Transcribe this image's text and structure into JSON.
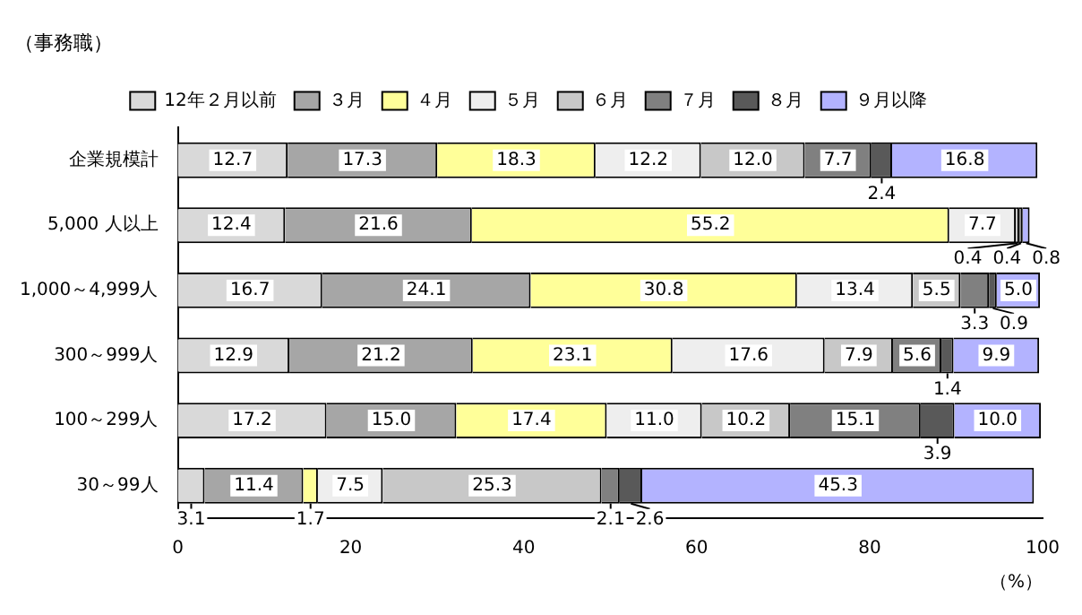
{
  "chart_data": {
    "type": "bar",
    "orientation": "horizontal",
    "stacked": true,
    "title": "（事務職）",
    "xlabel": "（%）",
    "categories": [
      "企業規模計",
      "5,000 人以上",
      "1,000～4,999人",
      "300～999人",
      "100～299人",
      "30～99人"
    ],
    "series": [
      {
        "name": "12年２月以前",
        "color": "#d9d9d9",
        "values": [
          12.7,
          12.4,
          16.7,
          12.9,
          17.2,
          3.1
        ],
        "value_labels": [
          "12.7",
          "12.4",
          "16.7",
          "12.9",
          "17.2",
          "3.1"
        ]
      },
      {
        "name": "３月",
        "color": "#a6a6a6",
        "values": [
          17.3,
          21.6,
          24.1,
          21.2,
          15.0,
          11.4
        ],
        "value_labels": [
          "17.3",
          "21.6",
          "24.1",
          "21.2",
          "15.0",
          "11.4"
        ]
      },
      {
        "name": "４月",
        "color": "#ffff99",
        "values": [
          18.3,
          55.2,
          30.8,
          23.1,
          17.4,
          1.7
        ],
        "value_labels": [
          "18.3",
          "55.2",
          "30.8",
          "23.1",
          "17.4",
          "1.7"
        ]
      },
      {
        "name": "５月",
        "color": "#eeeeee",
        "values": [
          12.2,
          7.7,
          13.4,
          17.6,
          11.0,
          7.5
        ],
        "value_labels": [
          "12.2",
          "7.7",
          "13.4",
          "17.6",
          "11.0",
          "7.5"
        ]
      },
      {
        "name": "６月",
        "color": "#c8c8c8",
        "values": [
          12.0,
          0.4,
          5.5,
          7.9,
          10.2,
          25.3
        ],
        "value_labels": [
          "12.0",
          "0.4",
          "5.5",
          "7.9",
          "10.2",
          "25.3"
        ]
      },
      {
        "name": "７月",
        "color": "#808080",
        "values": [
          7.7,
          0.4,
          3.3,
          5.6,
          15.1,
          2.1
        ],
        "value_labels": [
          "7.7",
          "0.4",
          "3.3",
          "5.6",
          "15.1",
          "2.1"
        ]
      },
      {
        "name": "８月",
        "color": "#595959",
        "values": [
          2.4,
          null,
          0.9,
          1.4,
          3.9,
          2.6
        ],
        "value_labels": [
          "2.4",
          null,
          "0.9",
          "1.4",
          "3.9",
          "2.6"
        ]
      },
      {
        "name": "９月以降",
        "color": "#b3b3ff",
        "values": [
          16.8,
          0.8,
          5.0,
          9.9,
          10.0,
          45.3
        ],
        "value_labels": [
          "16.8",
          "0.8",
          "5.0",
          "9.9",
          "10.0",
          "45.3"
        ]
      }
    ],
    "xlim": [
      0,
      100
    ],
    "xticks": [
      0,
      20,
      40,
      60,
      80,
      100
    ],
    "grid": false,
    "legend": "top"
  }
}
